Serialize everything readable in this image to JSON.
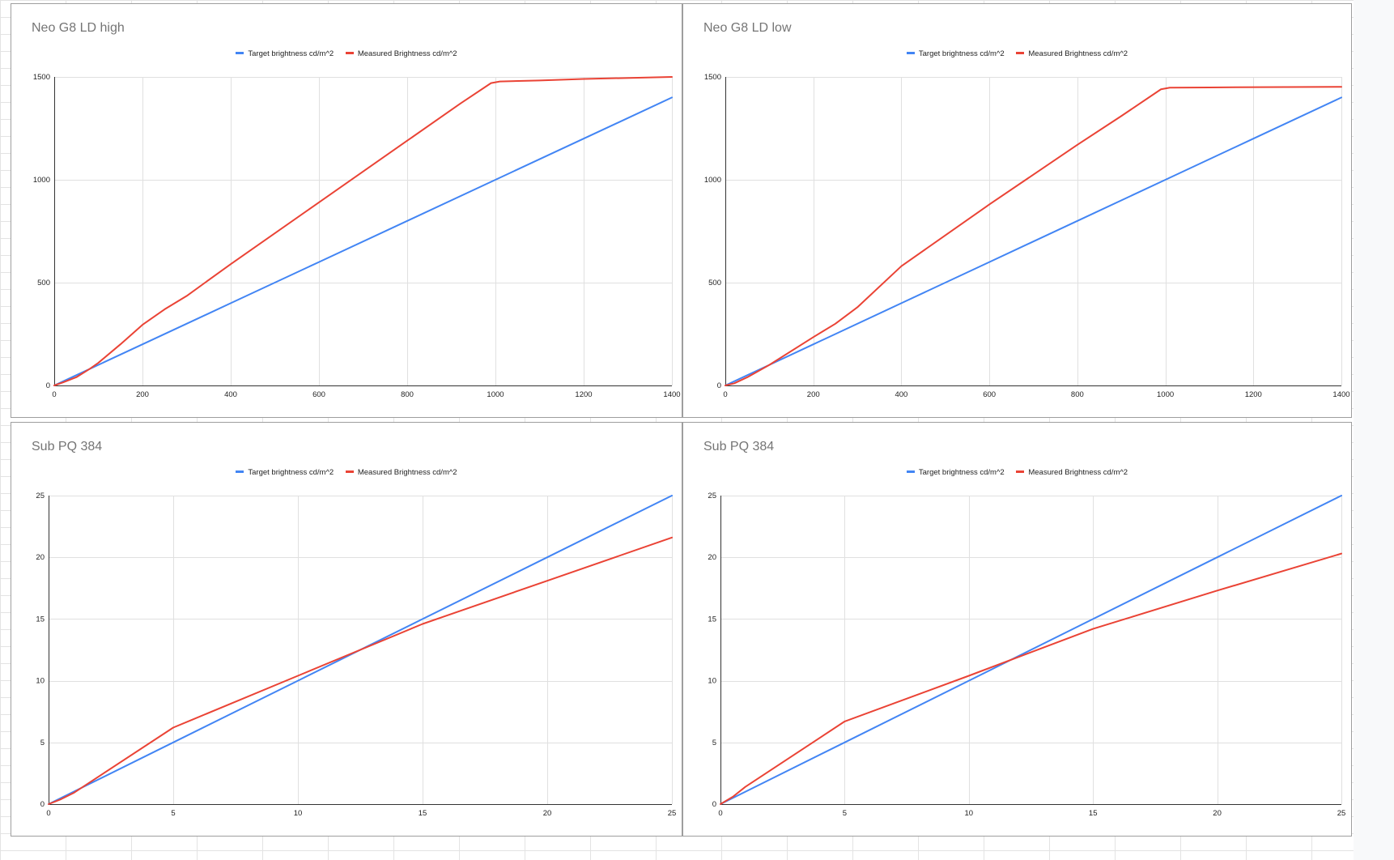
{
  "colors": {
    "target": "#4285f4",
    "measured": "#ea4335",
    "gridline": "#e0e0e0",
    "axis": "#333333"
  },
  "chart_data": [
    {
      "type": "line",
      "title": "Neo G8 LD high",
      "xlabel": "",
      "ylabel": "",
      "xlim": [
        0,
        1400
      ],
      "ylim": [
        0,
        1500
      ],
      "xticks": [
        0,
        200,
        400,
        600,
        800,
        1000,
        1200,
        1400
      ],
      "yticks": [
        0,
        500,
        1000,
        1500
      ],
      "grid": true,
      "legend": "top",
      "series": [
        {
          "name": "Target brightness cd/m^2",
          "color": "#4285f4",
          "points": [
            [
              0,
              0
            ],
            [
              50,
              50
            ],
            [
              100,
              100
            ],
            [
              200,
              200
            ],
            [
              400,
              400
            ],
            [
              600,
              600
            ],
            [
              800,
              800
            ],
            [
              1000,
              1000
            ],
            [
              1200,
              1200
            ],
            [
              1400,
              1400
            ]
          ]
        },
        {
          "name": "Measured Brightness cd/m^2",
          "color": "#ea4335",
          "points": [
            [
              0,
              0
            ],
            [
              20,
              15
            ],
            [
              50,
              40
            ],
            [
              80,
              80
            ],
            [
              100,
              110
            ],
            [
              150,
              200
            ],
            [
              200,
              295
            ],
            [
              250,
              370
            ],
            [
              300,
              435
            ],
            [
              400,
              590
            ],
            [
              600,
              890
            ],
            [
              800,
              1190
            ],
            [
              920,
              1370
            ],
            [
              990,
              1470
            ],
            [
              1010,
              1478
            ],
            [
              1100,
              1483
            ],
            [
              1200,
              1490
            ],
            [
              1400,
              1500
            ]
          ]
        }
      ]
    },
    {
      "type": "line",
      "title": "Neo G8 LD low",
      "xlabel": "",
      "ylabel": "",
      "xlim": [
        0,
        1400
      ],
      "ylim": [
        0,
        1500
      ],
      "xticks": [
        0,
        200,
        400,
        600,
        800,
        1000,
        1200,
        1400
      ],
      "yticks": [
        0,
        500,
        1000,
        1500
      ],
      "grid": true,
      "legend": "top",
      "series": [
        {
          "name": "Target brightness cd/m^2",
          "color": "#4285f4",
          "points": [
            [
              0,
              0
            ],
            [
              50,
              50
            ],
            [
              100,
              100
            ],
            [
              200,
              200
            ],
            [
              400,
              400
            ],
            [
              600,
              600
            ],
            [
              800,
              800
            ],
            [
              1000,
              1000
            ],
            [
              1200,
              1200
            ],
            [
              1400,
              1400
            ]
          ]
        },
        {
          "name": "Measured Brightness cd/m^2",
          "color": "#ea4335",
          "points": [
            [
              0,
              0
            ],
            [
              20,
              10
            ],
            [
              50,
              40
            ],
            [
              100,
              100
            ],
            [
              200,
              235
            ],
            [
              250,
              300
            ],
            [
              300,
              380
            ],
            [
              400,
              580
            ],
            [
              500,
              730
            ],
            [
              600,
              880
            ],
            [
              800,
              1170
            ],
            [
              900,
              1310
            ],
            [
              990,
              1440
            ],
            [
              1010,
              1448
            ],
            [
              1100,
              1449
            ],
            [
              1400,
              1452
            ]
          ]
        }
      ]
    },
    {
      "type": "line",
      "title": "Sub PQ 384",
      "xlabel": "",
      "ylabel": "",
      "xlim": [
        0,
        25
      ],
      "ylim": [
        0,
        25
      ],
      "xticks": [
        0,
        5,
        10,
        15,
        20,
        25
      ],
      "yticks": [
        0,
        5,
        10,
        15,
        20,
        25
      ],
      "grid": true,
      "legend": "top",
      "series": [
        {
          "name": "Target brightness cd/m^2",
          "color": "#4285f4",
          "points": [
            [
              0,
              0
            ],
            [
              0.5,
              0.5
            ],
            [
              1,
              1
            ],
            [
              5,
              5
            ],
            [
              10,
              10
            ],
            [
              15,
              15
            ],
            [
              20,
              20
            ],
            [
              25,
              25
            ]
          ]
        },
        {
          "name": "Measured Brightness cd/m^2",
          "color": "#ea4335",
          "points": [
            [
              0,
              0
            ],
            [
              0.5,
              0.4
            ],
            [
              1,
              0.9
            ],
            [
              5,
              6.2
            ],
            [
              10,
              10.4
            ],
            [
              15,
              14.6
            ],
            [
              20,
              18.1
            ],
            [
              25,
              21.6
            ]
          ]
        }
      ]
    },
    {
      "type": "line",
      "title": "Sub PQ 384",
      "xlabel": "",
      "ylabel": "",
      "xlim": [
        0,
        25
      ],
      "ylim": [
        0,
        25
      ],
      "xticks": [
        0,
        5,
        10,
        15,
        20,
        25
      ],
      "yticks": [
        0,
        5,
        10,
        15,
        20,
        25
      ],
      "grid": true,
      "legend": "top",
      "series": [
        {
          "name": "Target brightness cd/m^2",
          "color": "#4285f4",
          "points": [
            [
              0,
              0
            ],
            [
              0.5,
              0.5
            ],
            [
              1,
              1
            ],
            [
              5,
              5
            ],
            [
              10,
              10
            ],
            [
              15,
              15
            ],
            [
              20,
              20
            ],
            [
              25,
              25
            ]
          ]
        },
        {
          "name": "Measured Brightness cd/m^2",
          "color": "#ea4335",
          "points": [
            [
              0,
              0
            ],
            [
              0.5,
              0.6
            ],
            [
              1,
              1.4
            ],
            [
              5,
              6.7
            ],
            [
              10,
              10.4
            ],
            [
              15,
              14.2
            ],
            [
              20,
              17.3
            ],
            [
              25,
              20.3
            ]
          ]
        }
      ]
    }
  ]
}
